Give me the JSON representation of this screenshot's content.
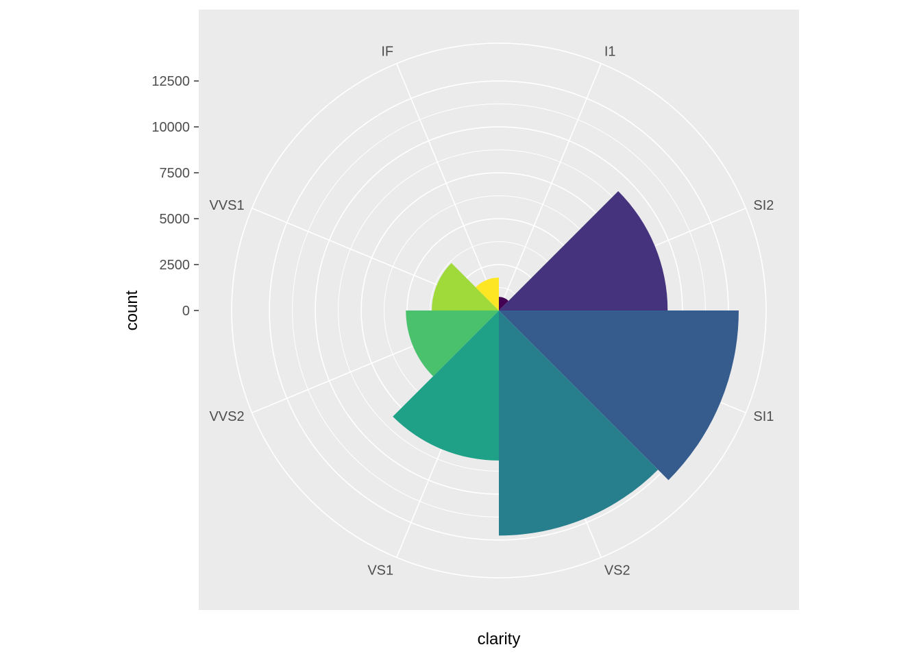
{
  "chart_data": {
    "type": "bar",
    "coord": "polar",
    "categories": [
      "I1",
      "SI2",
      "SI1",
      "VS2",
      "VS1",
      "VVS2",
      "VVS1",
      "IF"
    ],
    "values": [
      741,
      9194,
      13065,
      12258,
      8171,
      5066,
      3655,
      1790
    ],
    "colors": [
      "#440154",
      "#46337E",
      "#365C8D",
      "#277F8E",
      "#1FA187",
      "#4AC16D",
      "#9FDA3A",
      "#FDE725"
    ],
    "xlabel": "clarity",
    "ylabel": "count",
    "ylim": [
      0,
      13065
    ],
    "y_ticks": [
      0,
      2500,
      5000,
      7500,
      10000,
      12500
    ],
    "y_tick_labels": [
      "0",
      "2500",
      "5000",
      "7500",
      "10000",
      "12500"
    ],
    "grid": true,
    "panel_background": "#EBEBEB",
    "grid_color": "#FFFFFF",
    "legend": "none"
  }
}
